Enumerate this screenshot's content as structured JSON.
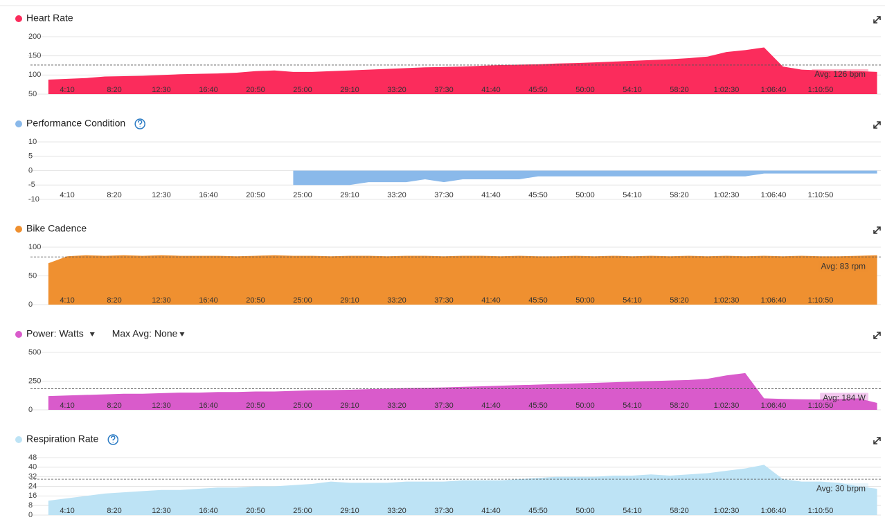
{
  "chart_data": [
    {
      "type": "area",
      "title": "Heart Rate",
      "color": "#fb2c5c",
      "x": [
        150,
        250,
        350,
        450,
        550,
        650,
        750,
        850,
        950,
        1050,
        1150,
        1250,
        1350,
        1450,
        1550,
        1650,
        1750,
        1850,
        1950,
        2050,
        2150,
        2250,
        2350,
        2450,
        2550,
        2650,
        2750,
        2850,
        2950,
        3050,
        3150,
        3250,
        3350,
        3450,
        3550,
        3650,
        3750,
        3850,
        3950,
        4050,
        4150,
        4250,
        4350,
        4450,
        4550
      ],
      "values": [
        88,
        90,
        92,
        96,
        97,
        98,
        100,
        102,
        103,
        104,
        106,
        110,
        112,
        108,
        108,
        110,
        112,
        114,
        116,
        118,
        120,
        121,
        122,
        124,
        126,
        127,
        128,
        130,
        131,
        133,
        135,
        137,
        139,
        141,
        144,
        148,
        160,
        165,
        172,
        122,
        114,
        112,
        110,
        110,
        108
      ],
      "xlim": [
        55,
        4570
      ],
      "xticks": [
        {
          "value": 250,
          "label": "4:10"
        },
        {
          "value": 500,
          "label": "8:20"
        },
        {
          "value": 750,
          "label": "12:30"
        },
        {
          "value": 1000,
          "label": "16:40"
        },
        {
          "value": 1250,
          "label": "20:50"
        },
        {
          "value": 1500,
          "label": "25:00"
        },
        {
          "value": 1750,
          "label": "29:10"
        },
        {
          "value": 2000,
          "label": "33:20"
        },
        {
          "value": 2250,
          "label": "37:30"
        },
        {
          "value": 2500,
          "label": "41:40"
        },
        {
          "value": 2750,
          "label": "45:50"
        },
        {
          "value": 3000,
          "label": "50:00"
        },
        {
          "value": 3250,
          "label": "54:10"
        },
        {
          "value": 3500,
          "label": "58:20"
        },
        {
          "value": 3750,
          "label": "1:02:30"
        },
        {
          "value": 4000,
          "label": "1:06:40"
        },
        {
          "value": 4250,
          "label": "1:10:50"
        }
      ],
      "ylim": [
        50,
        200
      ],
      "yticks": [
        50,
        100,
        150,
        200
      ],
      "grid": true,
      "average": 126,
      "average_label": "Avg: 126 bpm"
    },
    {
      "type": "area",
      "title": "Performance Condition",
      "color": "#8ab9ea",
      "x": [
        150,
        250,
        350,
        450,
        550,
        650,
        750,
        850,
        950,
        1050,
        1150,
        1250,
        1350,
        1450,
        1550,
        1650,
        1750,
        1850,
        1950,
        2050,
        2150,
        2250,
        2350,
        2450,
        2550,
        2650,
        2750,
        2850,
        2950,
        3050,
        3150,
        3250,
        3350,
        3450,
        3550,
        3650,
        3750,
        3850,
        3950,
        4050,
        4150,
        4250,
        4350,
        4450,
        4550
      ],
      "values": [
        null,
        null,
        null,
        null,
        null,
        null,
        null,
        null,
        null,
        null,
        null,
        null,
        null,
        -5,
        -5,
        -5,
        -5,
        -4,
        -4,
        -4,
        -3,
        -4,
        -3,
        -3,
        -3,
        -3,
        -2,
        -2,
        -2,
        -2,
        -2,
        -2,
        -2,
        -2,
        -2,
        -2,
        -2,
        -2,
        -1,
        -1,
        -1,
        -1,
        -1,
        -1,
        -1
      ],
      "xlim": [
        55,
        4570
      ],
      "xticks": [
        {
          "value": 250,
          "label": "4:10"
        },
        {
          "value": 500,
          "label": "8:20"
        },
        {
          "value": 750,
          "label": "12:30"
        },
        {
          "value": 1000,
          "label": "16:40"
        },
        {
          "value": 1250,
          "label": "20:50"
        },
        {
          "value": 1500,
          "label": "25:00"
        },
        {
          "value": 1750,
          "label": "29:10"
        },
        {
          "value": 2000,
          "label": "33:20"
        },
        {
          "value": 2250,
          "label": "37:30"
        },
        {
          "value": 2500,
          "label": "41:40"
        },
        {
          "value": 2750,
          "label": "45:50"
        },
        {
          "value": 3000,
          "label": "50:00"
        },
        {
          "value": 3250,
          "label": "54:10"
        },
        {
          "value": 3500,
          "label": "58:20"
        },
        {
          "value": 3750,
          "label": "1:02:30"
        },
        {
          "value": 4000,
          "label": "1:06:40"
        },
        {
          "value": 4250,
          "label": "1:10:50"
        }
      ],
      "ylim": [
        -10,
        10
      ],
      "yticks": [
        -10,
        -5,
        0,
        5,
        10
      ],
      "grid": true
    },
    {
      "type": "area",
      "title": "Bike Cadence",
      "color": "#ef9030",
      "x": [
        150,
        250,
        350,
        450,
        550,
        650,
        750,
        850,
        950,
        1050,
        1150,
        1250,
        1350,
        1450,
        1550,
        1650,
        1750,
        1850,
        1950,
        2050,
        2150,
        2250,
        2350,
        2450,
        2550,
        2650,
        2750,
        2850,
        2950,
        3050,
        3150,
        3250,
        3350,
        3450,
        3550,
        3650,
        3750,
        3850,
        3950,
        4050,
        4150,
        4250,
        4350,
        4450,
        4550
      ],
      "values": [
        72,
        84,
        86,
        85,
        86,
        85,
        86,
        85,
        85,
        85,
        84,
        85,
        86,
        85,
        85,
        84,
        85,
        85,
        84,
        85,
        85,
        84,
        85,
        85,
        84,
        85,
        84,
        84,
        85,
        84,
        85,
        84,
        85,
        84,
        85,
        84,
        85,
        84,
        85,
        84,
        85,
        84,
        84,
        85,
        86
      ],
      "xlim": [
        55,
        4570
      ],
      "xticks": [
        {
          "value": 250,
          "label": "4:10"
        },
        {
          "value": 500,
          "label": "8:20"
        },
        {
          "value": 750,
          "label": "12:30"
        },
        {
          "value": 1000,
          "label": "16:40"
        },
        {
          "value": 1250,
          "label": "20:50"
        },
        {
          "value": 1500,
          "label": "25:00"
        },
        {
          "value": 1750,
          "label": "29:10"
        },
        {
          "value": 2000,
          "label": "33:20"
        },
        {
          "value": 2250,
          "label": "37:30"
        },
        {
          "value": 2500,
          "label": "41:40"
        },
        {
          "value": 2750,
          "label": "45:50"
        },
        {
          "value": 3000,
          "label": "50:00"
        },
        {
          "value": 3250,
          "label": "54:10"
        },
        {
          "value": 3500,
          "label": "58:20"
        },
        {
          "value": 3750,
          "label": "1:02:30"
        },
        {
          "value": 4000,
          "label": "1:06:40"
        },
        {
          "value": 4250,
          "label": "1:10:50"
        }
      ],
      "ylim": [
        0,
        100
      ],
      "yticks": [
        0,
        50,
        100
      ],
      "grid": true,
      "average": 83,
      "average_label": "Avg: 83 rpm"
    },
    {
      "type": "area",
      "title": "Power: Watts",
      "max_avg_label": "Max Avg: None",
      "color": "#d95bcb",
      "x": [
        150,
        250,
        350,
        450,
        550,
        650,
        750,
        850,
        950,
        1050,
        1150,
        1250,
        1350,
        1450,
        1550,
        1650,
        1750,
        1850,
        1950,
        2050,
        2150,
        2250,
        2350,
        2450,
        2550,
        2650,
        2750,
        2850,
        2950,
        3050,
        3150,
        3250,
        3350,
        3450,
        3550,
        3650,
        3750,
        3850,
        3950,
        4050,
        4150,
        4250,
        4350,
        4450,
        4550
      ],
      "values": [
        120,
        125,
        130,
        135,
        140,
        140,
        145,
        150,
        150,
        155,
        155,
        160,
        160,
        165,
        170,
        172,
        175,
        180,
        185,
        190,
        192,
        195,
        200,
        205,
        210,
        215,
        220,
        225,
        230,
        235,
        240,
        245,
        250,
        255,
        260,
        270,
        300,
        320,
        100,
        95,
        92,
        90,
        95,
        100,
        60
      ],
      "xlim": [
        55,
        4570
      ],
      "xticks": [
        {
          "value": 250,
          "label": "4:10"
        },
        {
          "value": 500,
          "label": "8:20"
        },
        {
          "value": 750,
          "label": "12:30"
        },
        {
          "value": 1000,
          "label": "16:40"
        },
        {
          "value": 1250,
          "label": "20:50"
        },
        {
          "value": 1500,
          "label": "25:00"
        },
        {
          "value": 1750,
          "label": "29:10"
        },
        {
          "value": 2000,
          "label": "33:20"
        },
        {
          "value": 2250,
          "label": "37:30"
        },
        {
          "value": 2500,
          "label": "41:40"
        },
        {
          "value": 2750,
          "label": "45:50"
        },
        {
          "value": 3000,
          "label": "50:00"
        },
        {
          "value": 3250,
          "label": "54:10"
        },
        {
          "value": 3500,
          "label": "58:20"
        },
        {
          "value": 3750,
          "label": "1:02:30"
        },
        {
          "value": 4000,
          "label": "1:06:40"
        },
        {
          "value": 4250,
          "label": "1:10:50"
        }
      ],
      "ylim": [
        0,
        500
      ],
      "yticks": [
        0,
        250,
        500
      ],
      "grid": true,
      "average": 184,
      "average_label": "Avg: 184 W"
    },
    {
      "type": "area",
      "title": "Respiration Rate",
      "color": "#bde3f5",
      "x": [
        150,
        250,
        350,
        450,
        550,
        650,
        750,
        850,
        950,
        1050,
        1150,
        1250,
        1350,
        1450,
        1550,
        1650,
        1750,
        1850,
        1950,
        2050,
        2150,
        2250,
        2350,
        2450,
        2550,
        2650,
        2750,
        2850,
        2950,
        3050,
        3150,
        3250,
        3350,
        3450,
        3550,
        3650,
        3750,
        3850,
        3950,
        4050,
        4150,
        4250,
        4350,
        4450,
        4550
      ],
      "values": [
        12,
        14,
        16,
        18,
        19,
        20,
        21,
        21,
        22,
        23,
        23,
        24,
        24,
        25,
        26,
        28,
        27,
        27,
        27,
        28,
        28,
        28,
        29,
        29,
        29,
        30,
        31,
        32,
        32,
        32,
        33,
        33,
        34,
        33,
        34,
        35,
        37,
        39,
        42,
        30,
        28,
        28,
        27,
        24,
        22
      ],
      "xlim": [
        55,
        4570
      ],
      "xticks": [
        {
          "value": 250,
          "label": "4:10"
        },
        {
          "value": 500,
          "label": "8:20"
        },
        {
          "value": 750,
          "label": "12:30"
        },
        {
          "value": 1000,
          "label": "16:40"
        },
        {
          "value": 1250,
          "label": "20:50"
        },
        {
          "value": 1500,
          "label": "25:00"
        },
        {
          "value": 1750,
          "label": "29:10"
        },
        {
          "value": 2000,
          "label": "33:20"
        },
        {
          "value": 2250,
          "label": "37:30"
        },
        {
          "value": 2500,
          "label": "41:40"
        },
        {
          "value": 2750,
          "label": "45:50"
        },
        {
          "value": 3000,
          "label": "50:00"
        },
        {
          "value": 3250,
          "label": "54:10"
        },
        {
          "value": 3500,
          "label": "58:20"
        },
        {
          "value": 3750,
          "label": "1:02:30"
        },
        {
          "value": 4000,
          "label": "1:06:40"
        },
        {
          "value": 4250,
          "label": "1:10:50"
        }
      ],
      "ylim": [
        0,
        48
      ],
      "yticks": [
        0,
        8,
        16,
        24,
        32,
        40,
        48
      ],
      "grid": true,
      "average": 30,
      "average_label": "Avg: 30 brpm"
    }
  ]
}
